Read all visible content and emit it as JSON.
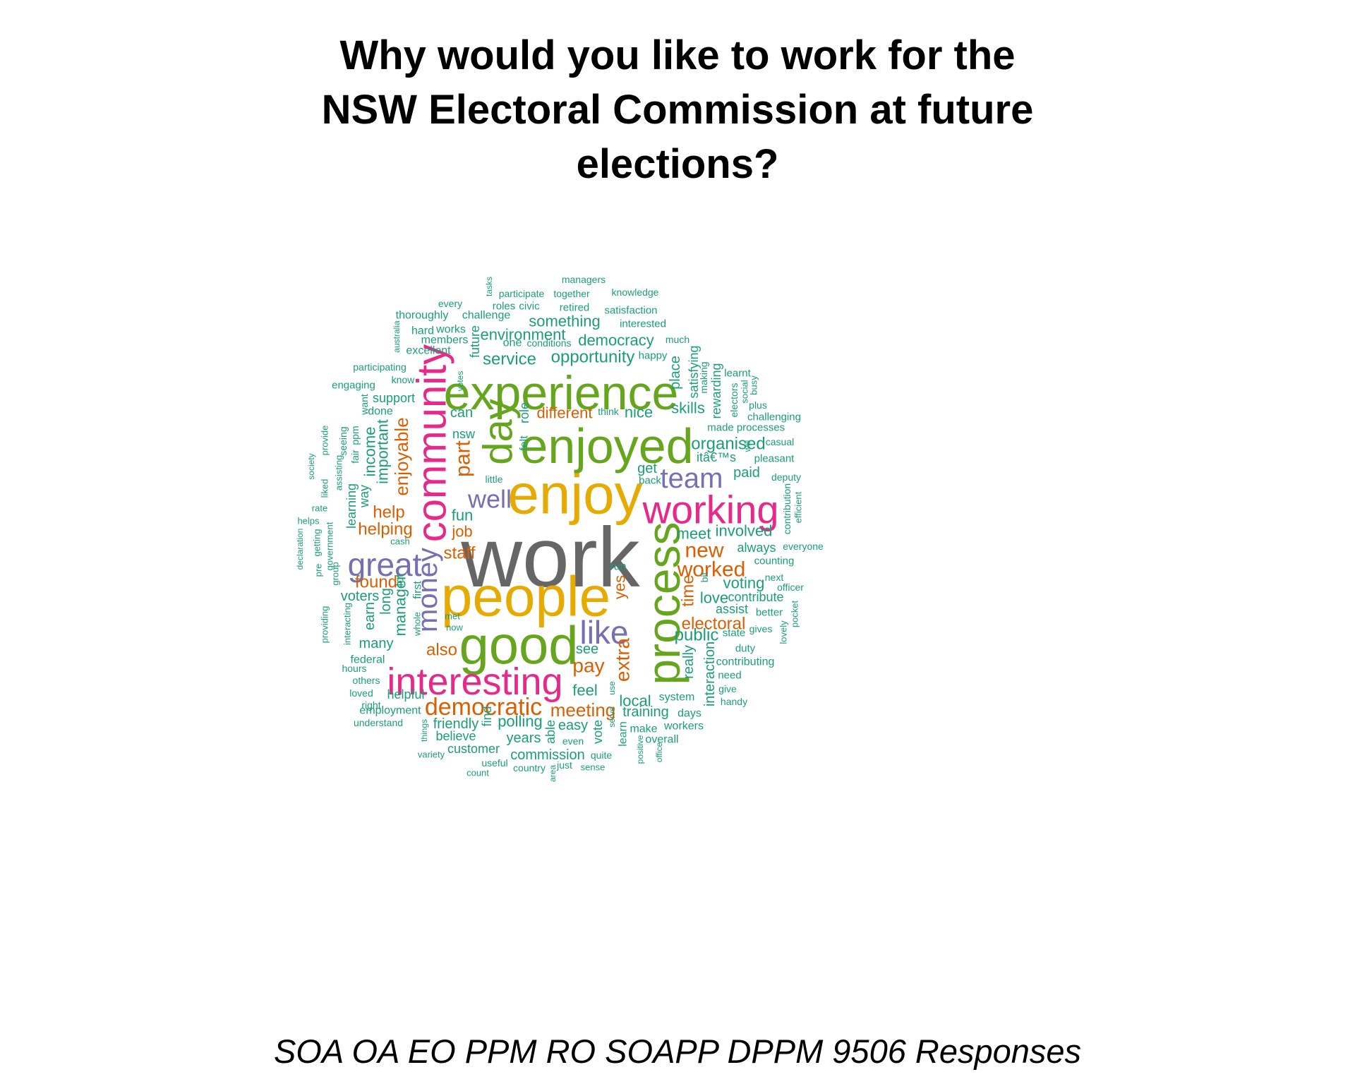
{
  "title_lines": [
    "Why would you like to work for the",
    "NSW Electoral Commission at future",
    "elections?"
  ],
  "footer": "SOA OA EO PPM RO SOAPP DPPM 9506 Responses",
  "palette": {
    "teal": "#1b9e77",
    "orange": "#d95f02",
    "purple": "#7570b3",
    "pink": "#e7298a",
    "green": "#66a61e",
    "gold": "#e6ab02",
    "gray": "#666666"
  },
  "words": [
    {
      "t": "work",
      "c": "gray"
    },
    {
      "t": "people",
      "c": "gold"
    },
    {
      "t": "enjoy",
      "c": "gold"
    },
    {
      "t": "good",
      "c": "green"
    },
    {
      "t": "enjoyed",
      "c": "green"
    },
    {
      "t": "experience",
      "c": "green"
    },
    {
      "t": "interesting",
      "c": "pink"
    },
    {
      "t": "process",
      "c": "green"
    },
    {
      "t": "community",
      "c": "pink"
    },
    {
      "t": "working",
      "c": "pink"
    },
    {
      "t": "day",
      "c": "green"
    },
    {
      "t": "great",
      "c": "purple"
    },
    {
      "t": "like",
      "c": "purple"
    },
    {
      "t": "money",
      "c": "purple"
    },
    {
      "t": "team",
      "c": "purple"
    },
    {
      "t": "well",
      "c": "purple"
    },
    {
      "t": "democratic",
      "c": "orange"
    },
    {
      "t": "part",
      "c": "orange"
    },
    {
      "t": "worked",
      "c": "orange"
    },
    {
      "t": "new",
      "c": "orange"
    },
    {
      "t": "extra",
      "c": "orange"
    },
    {
      "t": "pay",
      "c": "orange"
    },
    {
      "t": "meeting",
      "c": "orange"
    },
    {
      "t": "enjoyable",
      "c": "orange"
    },
    {
      "t": "helping",
      "c": "orange"
    },
    {
      "t": "found",
      "c": "orange"
    },
    {
      "t": "electoral",
      "c": "orange"
    },
    {
      "t": "also",
      "c": "orange"
    },
    {
      "t": "staff",
      "c": "orange"
    },
    {
      "t": "different",
      "c": "orange"
    },
    {
      "t": "help",
      "c": "orange"
    },
    {
      "t": "job",
      "c": "orange"
    },
    {
      "t": "time",
      "c": "orange"
    },
    {
      "t": "yes",
      "c": "orange"
    },
    {
      "t": "opportunity",
      "c": "teal"
    },
    {
      "t": "democracy",
      "c": "teal"
    },
    {
      "t": "something",
      "c": "teal"
    },
    {
      "t": "environment",
      "c": "teal"
    },
    {
      "t": "service",
      "c": "teal"
    },
    {
      "t": "organised",
      "c": "teal"
    },
    {
      "t": "public",
      "c": "teal"
    },
    {
      "t": "involved",
      "c": "teal"
    },
    {
      "t": "voting",
      "c": "teal"
    },
    {
      "t": "meet",
      "c": "teal"
    },
    {
      "t": "important",
      "c": "teal"
    },
    {
      "t": "income",
      "c": "teal"
    },
    {
      "t": "manager",
      "c": "teal"
    },
    {
      "t": "skills",
      "c": "teal"
    },
    {
      "t": "nice",
      "c": "teal"
    },
    {
      "t": "polling",
      "c": "teal"
    },
    {
      "t": "friendly",
      "c": "teal"
    },
    {
      "t": "training",
      "c": "teal"
    },
    {
      "t": "easy",
      "c": "teal"
    },
    {
      "t": "local",
      "c": "teal"
    },
    {
      "t": "feel",
      "c": "teal"
    },
    {
      "t": "commission",
      "c": "teal"
    },
    {
      "t": "years",
      "c": "teal"
    },
    {
      "t": "love",
      "c": "teal"
    },
    {
      "t": "paid",
      "c": "teal"
    },
    {
      "t": "fun",
      "c": "teal"
    },
    {
      "t": "can",
      "c": "teal"
    },
    {
      "t": "place",
      "c": "teal"
    },
    {
      "t": "see",
      "c": "teal"
    },
    {
      "t": "really",
      "c": "teal"
    },
    {
      "t": "interaction",
      "c": "teal"
    },
    {
      "t": "long",
      "c": "teal"
    },
    {
      "t": "earn",
      "c": "teal"
    },
    {
      "t": "voters",
      "c": "teal"
    },
    {
      "t": "many",
      "c": "teal"
    },
    {
      "t": "contribute",
      "c": "teal"
    },
    {
      "t": "always",
      "c": "teal"
    },
    {
      "t": "assist",
      "c": "teal"
    },
    {
      "t": "get",
      "c": "teal"
    },
    {
      "t": "support",
      "c": "teal"
    },
    {
      "t": "nsw",
      "c": "teal"
    },
    {
      "t": "rewarding",
      "c": "teal"
    },
    {
      "t": "satisfying",
      "c": "teal"
    },
    {
      "t": "future",
      "c": "teal"
    },
    {
      "t": "role",
      "c": "teal"
    },
    {
      "t": "felt",
      "c": "teal"
    },
    {
      "t": "way",
      "c": "teal"
    },
    {
      "t": "learning",
      "c": "teal"
    },
    {
      "t": "helpful",
      "c": "teal"
    },
    {
      "t": "customer",
      "c": "teal"
    },
    {
      "t": "believe",
      "c": "teal"
    },
    {
      "t": "vote",
      "c": "teal"
    },
    {
      "t": "able",
      "c": "teal"
    },
    {
      "t": "find",
      "c": "teal"
    },
    {
      "t": "contributing",
      "c": "teal"
    },
    {
      "t": "system",
      "c": "teal"
    },
    {
      "t": "days",
      "c": "teal"
    },
    {
      "t": "workers",
      "c": "teal"
    },
    {
      "t": "make",
      "c": "teal"
    },
    {
      "t": "overall",
      "c": "teal"
    },
    {
      "t": "learn",
      "c": "teal"
    },
    {
      "t": "run",
      "c": "teal"
    },
    {
      "t": "lot",
      "c": "teal"
    },
    {
      "t": "first",
      "c": "teal"
    },
    {
      "t": "done",
      "c": "teal"
    },
    {
      "t": "employment",
      "c": "teal"
    },
    {
      "t": "federal",
      "c": "teal"
    },
    {
      "t": "excellent",
      "c": "teal"
    },
    {
      "t": "members",
      "c": "teal"
    },
    {
      "t": "works",
      "c": "teal"
    },
    {
      "t": "hard",
      "c": "teal"
    },
    {
      "t": "one",
      "c": "teal"
    },
    {
      "t": "conditions",
      "c": "teal"
    },
    {
      "t": "challenge",
      "c": "teal"
    },
    {
      "t": "thoroughly",
      "c": "teal"
    },
    {
      "t": "roles",
      "c": "teal"
    },
    {
      "t": "civic",
      "c": "teal"
    },
    {
      "t": "retired",
      "c": "teal"
    },
    {
      "t": "satisfaction",
      "c": "teal"
    },
    {
      "t": "interested",
      "c": "teal"
    },
    {
      "t": "participate",
      "c": "teal"
    },
    {
      "t": "together",
      "c": "teal"
    },
    {
      "t": "knowledge",
      "c": "teal"
    },
    {
      "t": "managers",
      "c": "teal"
    },
    {
      "t": "every",
      "c": "teal"
    },
    {
      "t": "tasks",
      "c": "teal"
    },
    {
      "t": "much",
      "c": "teal"
    },
    {
      "t": "happy",
      "c": "teal"
    },
    {
      "t": "participating",
      "c": "teal"
    },
    {
      "t": "engaging",
      "c": "teal"
    },
    {
      "t": "know",
      "c": "teal"
    },
    {
      "t": "australia",
      "c": "teal"
    },
    {
      "t": "votes",
      "c": "teal"
    },
    {
      "t": "think",
      "c": "teal"
    },
    {
      "t": "want",
      "c": "teal"
    },
    {
      "t": "made",
      "c": "teal"
    },
    {
      "t": "processes",
      "c": "teal"
    },
    {
      "t": "casual",
      "c": "teal"
    },
    {
      "t": "itâ€™s",
      "c": "teal"
    },
    {
      "t": "pleasant",
      "c": "teal"
    },
    {
      "t": "challenging",
      "c": "teal"
    },
    {
      "t": "plus",
      "c": "teal"
    },
    {
      "t": "learnt",
      "c": "teal"
    },
    {
      "t": "making",
      "c": "teal"
    },
    {
      "t": "electors",
      "c": "teal"
    },
    {
      "t": "social",
      "c": "teal"
    },
    {
      "t": "busy",
      "c": "teal"
    },
    {
      "t": "will",
      "c": "teal"
    },
    {
      "t": "deputy",
      "c": "teal"
    },
    {
      "t": "contribution",
      "c": "teal"
    },
    {
      "t": "efficient",
      "c": "teal"
    },
    {
      "t": "everyone",
      "c": "teal"
    },
    {
      "t": "counting",
      "c": "teal"
    },
    {
      "t": "next",
      "c": "teal"
    },
    {
      "t": "officer",
      "c": "teal"
    },
    {
      "t": "better",
      "c": "teal"
    },
    {
      "t": "pocket",
      "c": "teal"
    },
    {
      "t": "gives",
      "c": "teal"
    },
    {
      "t": "lovely",
      "c": "teal"
    },
    {
      "t": "state",
      "c": "teal"
    },
    {
      "t": "duty",
      "c": "teal"
    },
    {
      "t": "need",
      "c": "teal"
    },
    {
      "t": "give",
      "c": "teal"
    },
    {
      "t": "handy",
      "c": "teal"
    },
    {
      "t": "bit",
      "c": "teal"
    },
    {
      "t": "little",
      "c": "teal"
    },
    {
      "t": "back",
      "c": "teal"
    },
    {
      "t": "seeing",
      "c": "teal"
    },
    {
      "t": "provide",
      "c": "teal"
    },
    {
      "t": "fair",
      "c": "teal"
    },
    {
      "t": "ppm",
      "c": "teal"
    },
    {
      "t": "assisting",
      "c": "teal"
    },
    {
      "t": "liked",
      "c": "teal"
    },
    {
      "t": "society",
      "c": "teal"
    },
    {
      "t": "rate",
      "c": "teal"
    },
    {
      "t": "helps",
      "c": "teal"
    },
    {
      "t": "declaration",
      "c": "teal"
    },
    {
      "t": "getting",
      "c": "teal"
    },
    {
      "t": "pre",
      "c": "teal"
    },
    {
      "t": "government",
      "c": "teal"
    },
    {
      "t": "group",
      "c": "teal"
    },
    {
      "t": "cash",
      "c": "teal"
    },
    {
      "t": "providing",
      "c": "teal"
    },
    {
      "t": "interacting",
      "c": "teal"
    },
    {
      "t": "hours",
      "c": "teal"
    },
    {
      "t": "others",
      "c": "teal"
    },
    {
      "t": "loved",
      "c": "teal"
    },
    {
      "t": "right",
      "c": "teal"
    },
    {
      "t": "understand",
      "c": "teal"
    },
    {
      "t": "whole",
      "c": "teal"
    },
    {
      "t": "met",
      "c": "teal"
    },
    {
      "t": "now",
      "c": "teal"
    },
    {
      "t": "things",
      "c": "teal"
    },
    {
      "t": "variety",
      "c": "teal"
    },
    {
      "t": "count",
      "c": "teal"
    },
    {
      "t": "useful",
      "c": "teal"
    },
    {
      "t": "country",
      "c": "teal"
    },
    {
      "t": "area",
      "c": "teal"
    },
    {
      "t": "just",
      "c": "teal"
    },
    {
      "t": "sense",
      "c": "teal"
    },
    {
      "t": "quite",
      "c": "teal"
    },
    {
      "t": "even",
      "c": "teal"
    },
    {
      "t": "serve",
      "c": "teal"
    },
    {
      "t": "use",
      "c": "teal"
    },
    {
      "t": "positive",
      "c": "teal"
    },
    {
      "t": "office",
      "c": "teal"
    }
  ]
}
